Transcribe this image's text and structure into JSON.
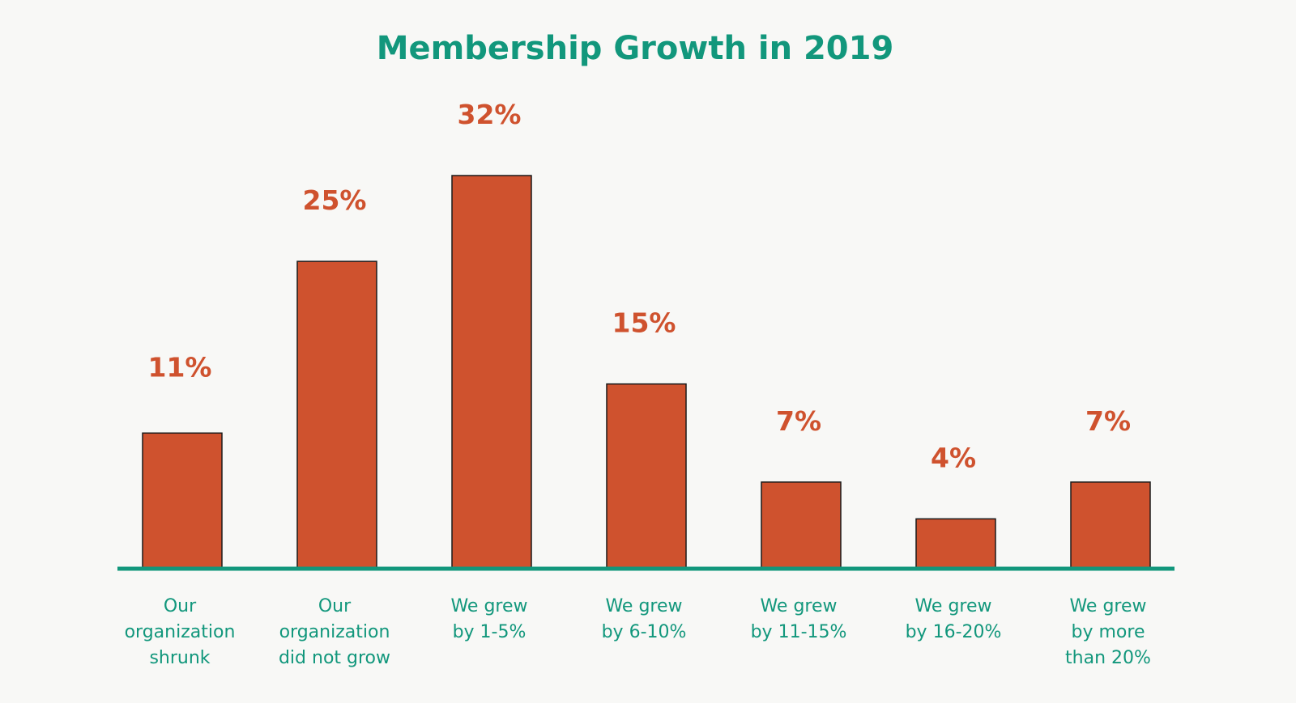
{
  "chart_data": {
    "type": "bar",
    "title": "Membership Growth in 2019",
    "categories": [
      [
        "Our",
        "organization",
        "shrunk"
      ],
      [
        "Our",
        "organization",
        "did not grow"
      ],
      [
        "We grew",
        "by 1-5%"
      ],
      [
        "We grew",
        "by 6-10%"
      ],
      [
        "We grew",
        "by 11-15%"
      ],
      [
        "We grew",
        "by 16-20%"
      ],
      [
        "We grew",
        "by more",
        "than 20%"
      ]
    ],
    "values": [
      11,
      25,
      32,
      15,
      7,
      4,
      7
    ],
    "data_labels": [
      "11%",
      "25%",
      "32%",
      "15%",
      "7%",
      "4%",
      "7%"
    ],
    "ylim": [
      0,
      32
    ],
    "xlabel": "",
    "ylabel": "",
    "grid": false,
    "colors": {
      "bar": "#cf522e",
      "axis": "#12977c",
      "title": "#12977c",
      "labels": "#12977c",
      "value_labels": "#cf522e",
      "background": "#f8f8f6"
    }
  }
}
